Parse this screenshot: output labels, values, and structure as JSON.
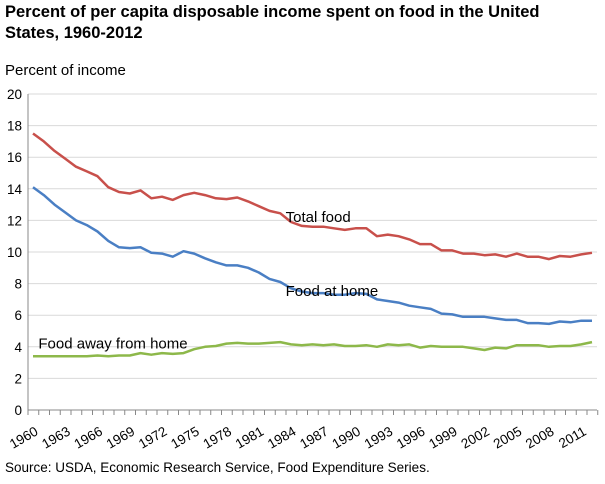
{
  "chart_data": {
    "type": "line",
    "title": "Percent of per capita disposable income spent on food in the United States, 1960-2012",
    "ylabel": "Percent of income",
    "xlabel": "",
    "source": "Source: USDA, Economic Research Service, Food Expenditure Series.",
    "ylim": [
      0,
      20
    ],
    "yticks": [
      0,
      2,
      4,
      6,
      8,
      10,
      12,
      14,
      16,
      18,
      20
    ],
    "xlim": [
      1960,
      2012
    ],
    "xtick_labels": [
      "1960",
      "1963",
      "1966",
      "1969",
      "1972",
      "1975",
      "1978",
      "1981",
      "1984",
      "1987",
      "1990",
      "1993",
      "1996",
      "1999",
      "2002",
      "2005",
      "2008",
      "2011"
    ],
    "grid": true,
    "x_start": 1960,
    "series": [
      {
        "name": "Total food",
        "color": "#c8504b",
        "values": [
          17.5,
          17.0,
          16.4,
          15.9,
          15.4,
          15.1,
          14.8,
          14.1,
          13.8,
          13.7,
          13.9,
          13.4,
          13.5,
          13.3,
          13.6,
          13.75,
          13.6,
          13.4,
          13.35,
          13.45,
          13.2,
          12.9,
          12.6,
          12.45,
          11.9,
          11.65,
          11.6,
          11.6,
          11.5,
          11.4,
          11.5,
          11.5,
          11.0,
          11.1,
          11.0,
          10.8,
          10.5,
          10.5,
          10.1,
          10.1,
          9.9,
          9.9,
          9.8,
          9.85,
          9.7,
          9.9,
          9.7,
          9.7,
          9.55,
          9.75,
          9.7,
          9.85,
          9.95
        ]
      },
      {
        "name": "Food at home",
        "color": "#4a7fc4",
        "values": [
          14.1,
          13.6,
          13.0,
          12.5,
          12.0,
          11.7,
          11.3,
          10.7,
          10.3,
          10.25,
          10.3,
          9.95,
          9.9,
          9.7,
          10.05,
          9.9,
          9.6,
          9.35,
          9.15,
          9.15,
          9.0,
          8.7,
          8.3,
          8.1,
          7.7,
          7.5,
          7.4,
          7.4,
          7.3,
          7.3,
          7.4,
          7.35,
          7.0,
          6.9,
          6.8,
          6.6,
          6.5,
          6.4,
          6.1,
          6.05,
          5.9,
          5.9,
          5.9,
          5.8,
          5.7,
          5.7,
          5.5,
          5.5,
          5.45,
          5.6,
          5.55,
          5.65,
          5.65
        ]
      },
      {
        "name": "Food away from home",
        "color": "#8db84a",
        "values": [
          3.4,
          3.4,
          3.4,
          3.4,
          3.4,
          3.4,
          3.45,
          3.4,
          3.45,
          3.45,
          3.6,
          3.5,
          3.6,
          3.55,
          3.6,
          3.85,
          4.0,
          4.05,
          4.2,
          4.25,
          4.2,
          4.2,
          4.25,
          4.3,
          4.15,
          4.1,
          4.15,
          4.1,
          4.15,
          4.05,
          4.05,
          4.1,
          4.0,
          4.15,
          4.1,
          4.15,
          3.95,
          4.05,
          4.0,
          4.0,
          4.0,
          3.9,
          3.8,
          3.95,
          3.9,
          4.1,
          4.1,
          4.1,
          4.0,
          4.05,
          4.05,
          4.15,
          4.3
        ]
      }
    ]
  }
}
